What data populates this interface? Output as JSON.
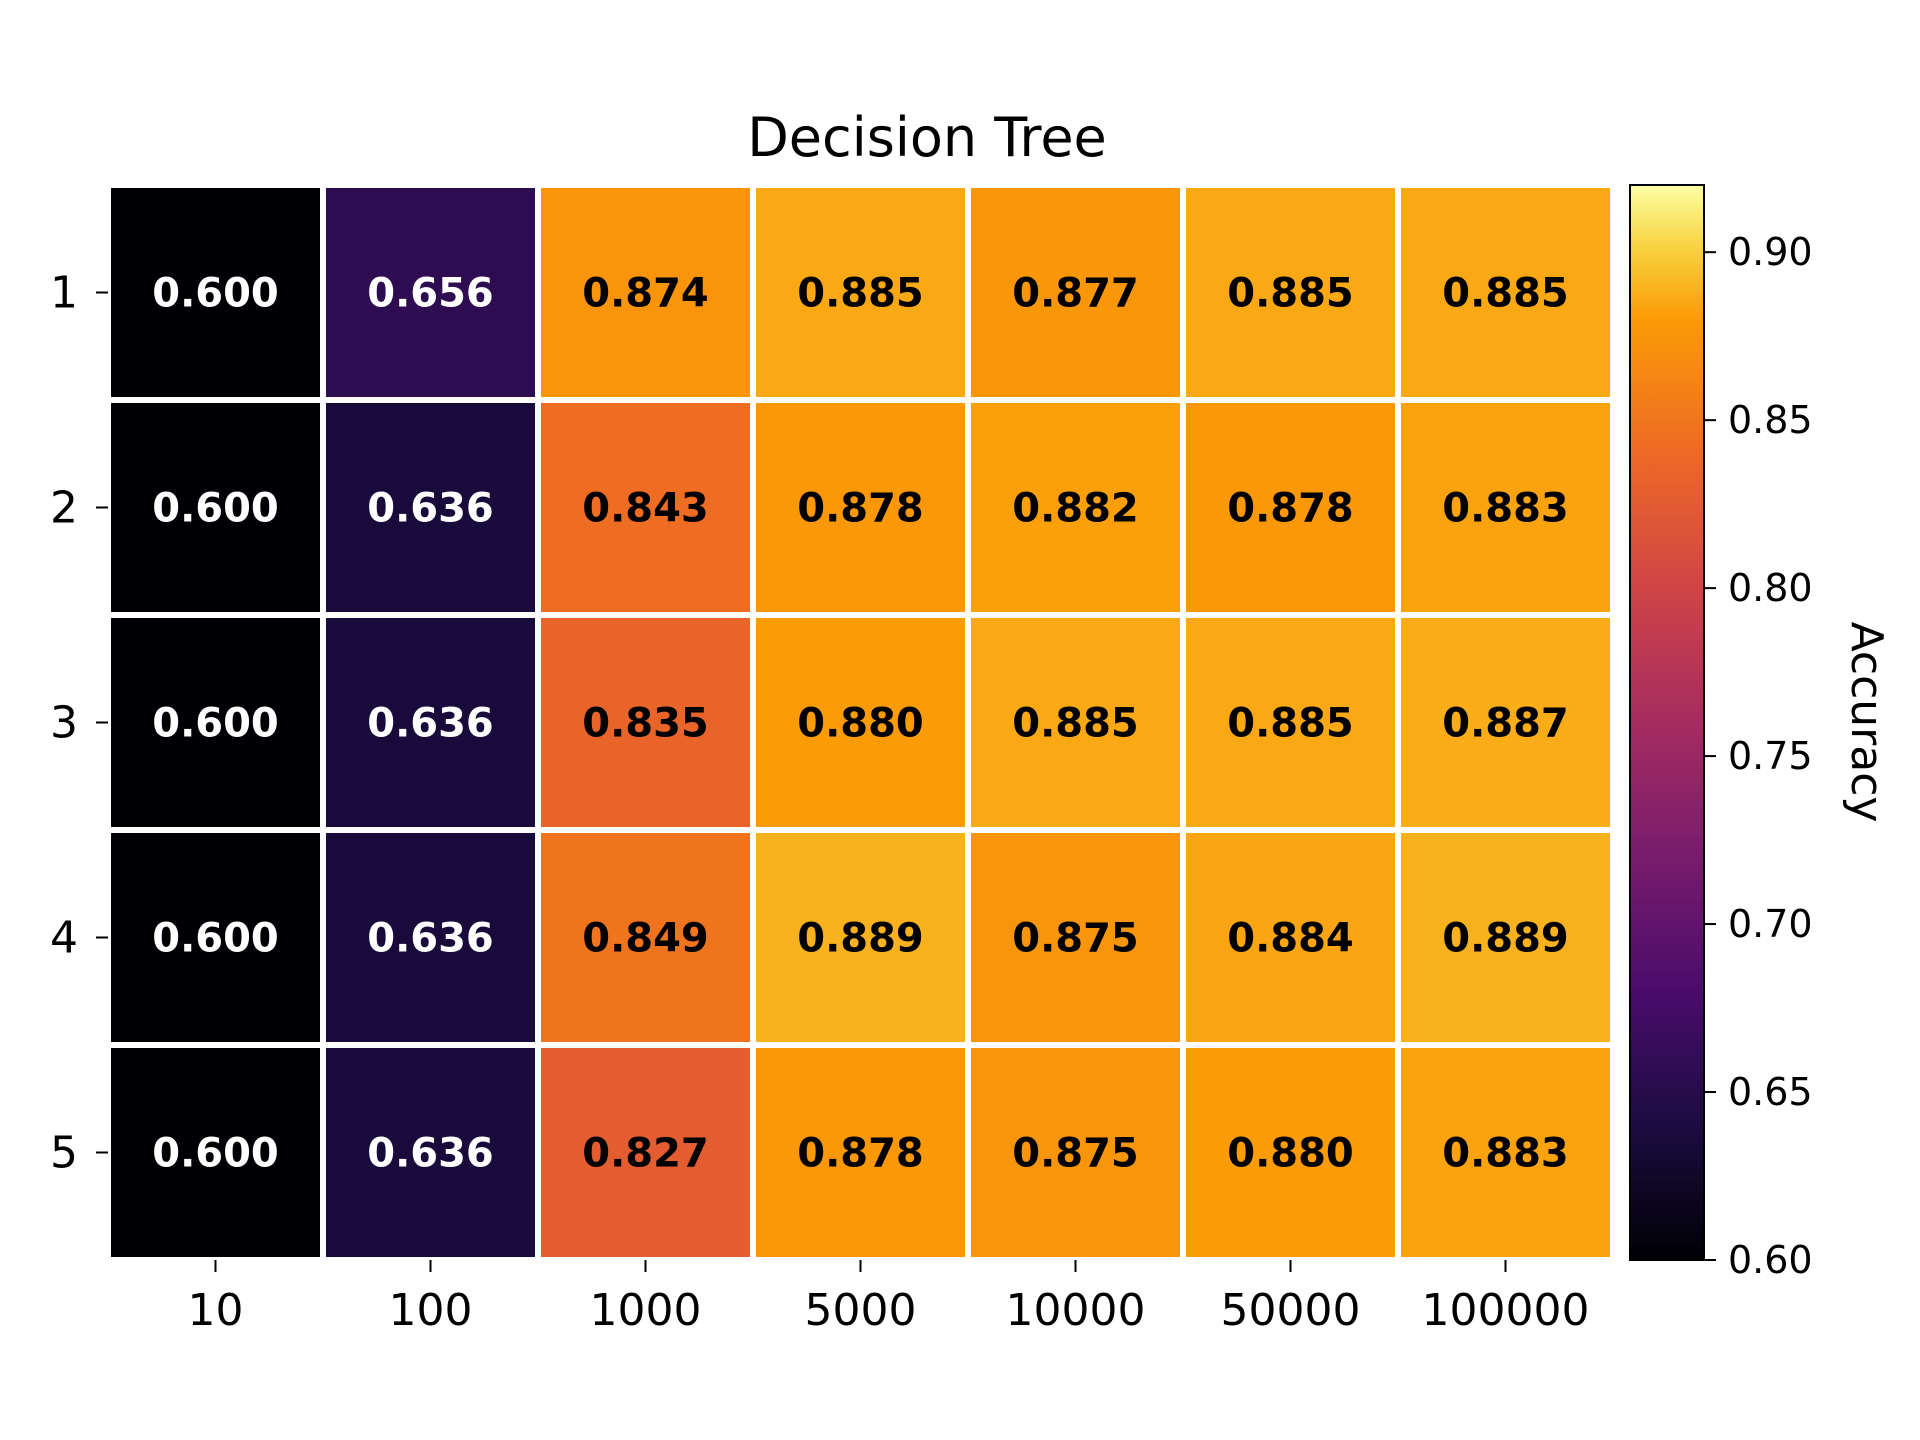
{
  "chart_data": {
    "type": "heatmap",
    "title": "Decision Tree",
    "x": [
      "10",
      "100",
      "1000",
      "5000",
      "10000",
      "50000",
      "100000"
    ],
    "y": [
      "1",
      "2",
      "3",
      "4",
      "5"
    ],
    "values": [
      [
        0.6,
        0.656,
        0.874,
        0.885,
        0.877,
        0.885,
        0.885
      ],
      [
        0.6,
        0.636,
        0.843,
        0.878,
        0.882,
        0.878,
        0.883
      ],
      [
        0.6,
        0.636,
        0.835,
        0.88,
        0.885,
        0.885,
        0.887
      ],
      [
        0.6,
        0.636,
        0.849,
        0.889,
        0.875,
        0.884,
        0.889
      ],
      [
        0.6,
        0.636,
        0.827,
        0.878,
        0.875,
        0.88,
        0.883
      ]
    ],
    "cell_labels": [
      [
        "0.600",
        "0.656",
        "0.874",
        "0.885",
        "0.877",
        "0.885",
        "0.885"
      ],
      [
        "0.600",
        "0.636",
        "0.843",
        "0.878",
        "0.882",
        "0.878",
        "0.883"
      ],
      [
        "0.600",
        "0.636",
        "0.835",
        "0.880",
        "0.885",
        "0.885",
        "0.887"
      ],
      [
        "0.600",
        "0.636",
        "0.849",
        "0.889",
        "0.875",
        "0.884",
        "0.889"
      ],
      [
        "0.600",
        "0.636",
        "0.827",
        "0.878",
        "0.875",
        "0.880",
        "0.883"
      ]
    ],
    "colorbar": {
      "label": "Accuracy",
      "colormap": "inferno",
      "range": [
        0.6,
        0.92
      ],
      "ticks": [
        0.6,
        0.65,
        0.7,
        0.75,
        0.8,
        0.85,
        0.9
      ],
      "tick_labels": [
        "0.60",
        "0.65",
        "0.70",
        "0.75",
        "0.80",
        "0.85",
        "0.90"
      ]
    },
    "grid": false,
    "cell_gap_color": "#ffffff"
  }
}
